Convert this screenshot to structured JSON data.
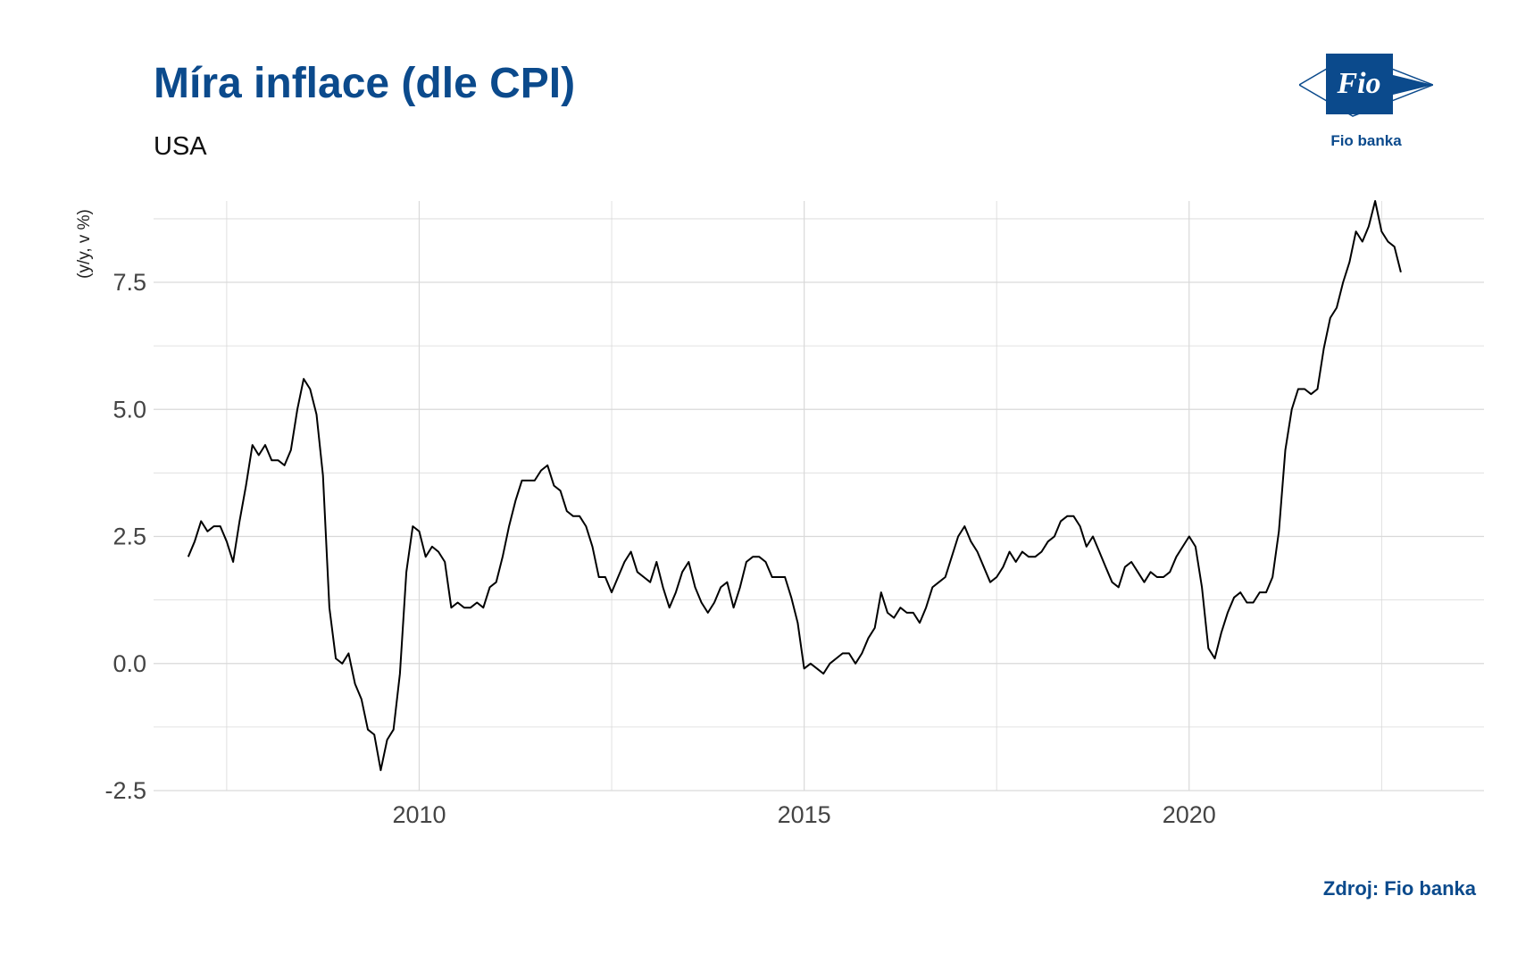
{
  "header": {
    "title": "Míra inflace (dle CPI)",
    "subtitle": "USA"
  },
  "logo": {
    "mark_text": "Fio",
    "caption": "Fio banka",
    "color": "#0b4a8c"
  },
  "source": "Zdroj: Fio banka",
  "chart_data": {
    "type": "line",
    "title": "Míra inflace (dle CPI)",
    "subtitle": "USA",
    "xlabel": "",
    "ylabel": "(y/y, v %)",
    "x_tick_labels": [
      "2010",
      "2015",
      "2020"
    ],
    "y_tick_labels": [
      "-2.5",
      "0.0",
      "2.5",
      "5.0",
      "7.5"
    ],
    "x_ticks": [
      2010,
      2015,
      2020
    ],
    "y_ticks": [
      -2.5,
      0,
      2.5,
      5,
      7.5
    ],
    "xlim": [
      2006.55,
      2023.83
    ],
    "ylim": [
      -2.5,
      9.1
    ],
    "grid": true,
    "legend": "none",
    "line_color": "#000000",
    "grid_color": "#d9d9d9",
    "x_start": "2007-01",
    "x_step": "1 month",
    "series": [
      {
        "values": [
          2.1,
          2.4,
          2.8,
          2.6,
          2.7,
          2.7,
          2.4,
          2.0,
          2.8,
          3.5,
          4.3,
          4.1,
          4.3,
          4.0,
          4.0,
          3.9,
          4.2,
          5.0,
          5.6,
          5.4,
          4.9,
          3.7,
          1.1,
          0.1,
          0.0,
          0.2,
          -0.4,
          -0.7,
          -1.3,
          -1.4,
          -2.1,
          -1.5,
          -1.3,
          -0.2,
          1.8,
          2.7,
          2.6,
          2.1,
          2.3,
          2.2,
          2.0,
          1.1,
          1.2,
          1.1,
          1.1,
          1.2,
          1.1,
          1.5,
          1.6,
          2.1,
          2.7,
          3.2,
          3.6,
          3.6,
          3.6,
          3.8,
          3.9,
          3.5,
          3.4,
          3.0,
          2.9,
          2.9,
          2.7,
          2.3,
          1.7,
          1.7,
          1.4,
          1.7,
          2.0,
          2.2,
          1.8,
          1.7,
          1.6,
          2.0,
          1.5,
          1.1,
          1.4,
          1.8,
          2.0,
          1.5,
          1.2,
          1.0,
          1.2,
          1.5,
          1.6,
          1.1,
          1.5,
          2.0,
          2.1,
          2.1,
          2.0,
          1.7,
          1.7,
          1.7,
          1.3,
          0.8,
          -0.1,
          0.0,
          -0.1,
          -0.2,
          0.0,
          0.1,
          0.2,
          0.2,
          0.0,
          0.2,
          0.5,
          0.7,
          1.4,
          1.0,
          0.9,
          1.1,
          1.0,
          1.0,
          0.8,
          1.1,
          1.5,
          1.6,
          1.7,
          2.1,
          2.5,
          2.7,
          2.4,
          2.2,
          1.9,
          1.6,
          1.7,
          1.9,
          2.2,
          2.0,
          2.2,
          2.1,
          2.1,
          2.2,
          2.4,
          2.5,
          2.8,
          2.9,
          2.9,
          2.7,
          2.3,
          2.5,
          2.2,
          1.9,
          1.6,
          1.5,
          1.9,
          2.0,
          1.8,
          1.6,
          1.8,
          1.7,
          1.7,
          1.8,
          2.1,
          2.3,
          2.5,
          2.3,
          1.5,
          0.3,
          0.1,
          0.6,
          1.0,
          1.3,
          1.4,
          1.2,
          1.2,
          1.4,
          1.4,
          1.7,
          2.6,
          4.2,
          5.0,
          5.4,
          5.4,
          5.3,
          5.4,
          6.2,
          6.8,
          7.0,
          7.5,
          7.9,
          8.5,
          8.3,
          8.6,
          9.1,
          8.5,
          8.3,
          8.2,
          7.7
        ]
      }
    ]
  }
}
